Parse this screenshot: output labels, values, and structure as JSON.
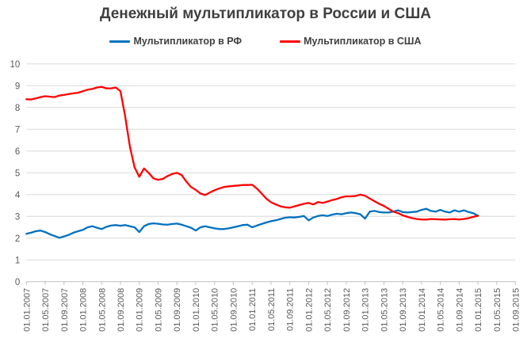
{
  "chart_data": {
    "type": "line",
    "title": "Денежный мультипликатор в России и США",
    "xlabel": "",
    "ylabel": "",
    "ylim": [
      0,
      10
    ],
    "y_ticks": [
      0,
      1,
      2,
      3,
      4,
      5,
      6,
      7,
      8,
      9,
      10
    ],
    "grid": true,
    "legend_position": "top",
    "x_start_label": "01.01.2007",
    "x_months_span": 104,
    "x_tick_every_months": 4,
    "x_tick_labels": [
      "01.01.2007",
      "01.05.2007",
      "01.09.2007",
      "01.01.2008",
      "01.05.2008",
      "01.09.2008",
      "01.01.2009",
      "01.05.2009",
      "01.09.2009",
      "01.01.2010",
      "01.05.2010",
      "01.09.2010",
      "01.01.2011",
      "01.05.2011",
      "01.09.2011",
      "01.01.2012",
      "01.05.2012",
      "01.09.2012",
      "01.01.2013",
      "01.05.2013",
      "01.09.2013",
      "01.01.2014",
      "01.05.2014",
      "01.09.2014",
      "01.01.2015",
      "01.05.2015",
      "01.09.2015"
    ],
    "series": [
      {
        "name": "Мультипликатор в РФ",
        "color": "#0070C0",
        "start": "01.01.2007",
        "step_months": 1,
        "values": [
          2.2,
          2.25,
          2.32,
          2.35,
          2.28,
          2.18,
          2.1,
          2.02,
          2.08,
          2.15,
          2.25,
          2.32,
          2.38,
          2.5,
          2.55,
          2.48,
          2.42,
          2.52,
          2.58,
          2.6,
          2.57,
          2.6,
          2.55,
          2.5,
          2.28,
          2.55,
          2.65,
          2.68,
          2.66,
          2.63,
          2.62,
          2.65,
          2.67,
          2.62,
          2.55,
          2.48,
          2.35,
          2.5,
          2.55,
          2.5,
          2.45,
          2.42,
          2.42,
          2.45,
          2.5,
          2.55,
          2.6,
          2.62,
          2.5,
          2.58,
          2.65,
          2.72,
          2.78,
          2.82,
          2.88,
          2.94,
          2.96,
          2.95,
          2.98,
          3.02,
          2.82,
          2.95,
          3.02,
          3.05,
          3.02,
          3.08,
          3.12,
          3.1,
          3.15,
          3.18,
          3.15,
          3.1,
          2.9,
          3.22,
          3.25,
          3.2,
          3.18,
          3.18,
          3.22,
          3.28,
          3.2,
          3.18,
          3.2,
          3.22,
          3.3,
          3.35,
          3.25,
          3.22,
          3.3,
          3.22,
          3.18,
          3.28,
          3.22,
          3.28,
          3.2,
          3.15,
          3.03
        ]
      },
      {
        "name": "Мультипликатор в США",
        "color": "#FF0000",
        "start": "01.01.2007",
        "step_months": 1,
        "values": [
          8.38,
          8.37,
          8.42,
          8.48,
          8.52,
          8.5,
          8.48,
          8.55,
          8.58,
          8.62,
          8.65,
          8.68,
          8.75,
          8.82,
          8.85,
          8.92,
          8.95,
          8.88,
          8.88,
          8.92,
          8.75,
          7.6,
          6.2,
          5.25,
          4.82,
          5.2,
          5.0,
          4.75,
          4.68,
          4.72,
          4.85,
          4.95,
          5.0,
          4.9,
          4.6,
          4.35,
          4.22,
          4.05,
          3.98,
          4.1,
          4.2,
          4.28,
          4.35,
          4.38,
          4.4,
          4.42,
          4.44,
          4.44,
          4.45,
          4.28,
          4.05,
          3.82,
          3.65,
          3.55,
          3.46,
          3.42,
          3.4,
          3.46,
          3.52,
          3.58,
          3.62,
          3.55,
          3.66,
          3.62,
          3.68,
          3.75,
          3.8,
          3.88,
          3.92,
          3.92,
          3.94,
          4.0,
          3.95,
          3.82,
          3.7,
          3.58,
          3.48,
          3.35,
          3.22,
          3.15,
          3.05,
          2.98,
          2.92,
          2.88,
          2.86,
          2.85,
          2.88,
          2.87,
          2.86,
          2.85,
          2.87,
          2.88,
          2.86,
          2.88,
          2.92,
          2.98,
          3.03
        ]
      }
    ],
    "colors": {
      "title_text": "#3F3F3F",
      "axis_labels": "#595959",
      "gridline": "#D9D9D9",
      "axis_line": "#BFBFBF"
    }
  }
}
